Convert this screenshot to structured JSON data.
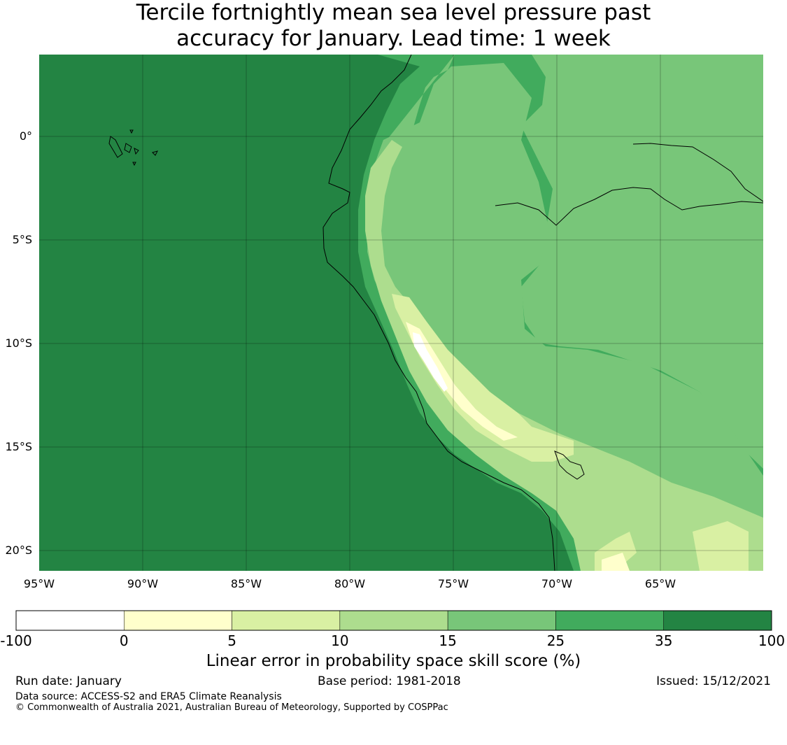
{
  "title": {
    "line1": "Tercile fortnightly mean sea level pressure past",
    "line2": "accuracy for January. Lead time: 1 week"
  },
  "map": {
    "lon_ticks": [
      "95°W",
      "90°W",
      "85°W",
      "80°W",
      "75°W",
      "70°W",
      "65°W"
    ],
    "lat_ticks": [
      "0°",
      "5°S",
      "10°S",
      "15°S",
      "20°S"
    ],
    "lon_range": [
      -95,
      -60
    ],
    "lat_range": [
      -21,
      4
    ],
    "gridlines": true,
    "colors": {
      "c_gt35": "#238443",
      "c_25_35": "#41ab5d",
      "c_15_25": "#78c679",
      "c_10_15": "#addd8e",
      "c_5_10": "#d9f0a3",
      "c_0_5": "#ffffcc",
      "c_lt0": "#ffffff",
      "coast": "#000000"
    }
  },
  "colorbar": {
    "boundaries": [
      "-100",
      "0",
      "5",
      "10",
      "15",
      "25",
      "35",
      "100"
    ],
    "colors": [
      "#ffffff",
      "#ffffcc",
      "#d9f0a3",
      "#addd8e",
      "#78c679",
      "#41ab5d",
      "#238443"
    ],
    "label": "Linear error in probability space skill score (%)"
  },
  "footer": {
    "run_date": "Run date: January",
    "base_period": "Base period: 1981-2018",
    "issued": "Issued: 15/12/2021",
    "data_source": "Data source: ACCESS-S2 and ERA5 Climate Reanalysis",
    "copyright": "© Commonwealth of Australia 2021, Australian Bureau of Meteorology, Supported by COSPPac"
  }
}
